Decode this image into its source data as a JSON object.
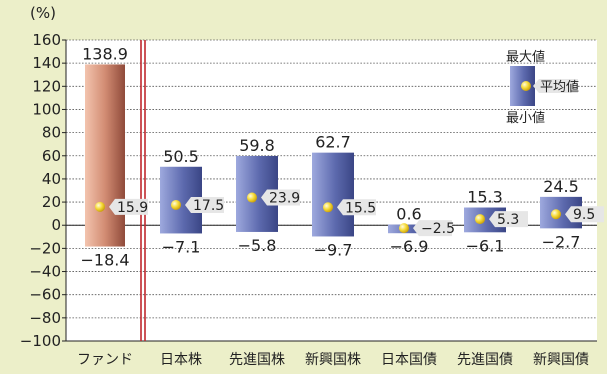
{
  "chart_data": {
    "type": "bar",
    "title": "",
    "ylabel": "(%)",
    "ylim": [
      -100,
      160
    ],
    "yticks": [
      160,
      140,
      120,
      100,
      80,
      60,
      40,
      20,
      0,
      -20,
      -40,
      -60,
      -80,
      -100
    ],
    "grid": true,
    "categories": [
      "ファンド",
      "日本株",
      "先進国株",
      "新興国株",
      "日本国債",
      "先進国債",
      "新興国債"
    ],
    "max": [
      138.9,
      50.5,
      59.8,
      62.7,
      0.6,
      15.3,
      24.5
    ],
    "min": [
      -18.4,
      -7.1,
      -5.8,
      -9.7,
      -6.9,
      -6.1,
      -2.7
    ],
    "avg": [
      15.9,
      17.5,
      23.9,
      15.5,
      -2.5,
      5.3,
      9.5
    ],
    "max_labels": [
      "138.9",
      "50.5",
      "59.8",
      "62.7",
      "0.6",
      "15.3",
      "24.5"
    ],
    "min_labels": [
      "−18.4",
      "−7.1",
      "−5.8",
      "−9.7",
      "−6.9",
      "−6.1",
      "−2.7"
    ],
    "avg_labels": [
      "15.9",
      "17.5",
      "23.9",
      "15.5",
      "−2.5",
      "5.3",
      "9.5"
    ],
    "legend": {
      "max": "最大値",
      "avg": "平均値",
      "min": "最小値",
      "placement": "top-right"
    },
    "colors": {
      "background": "#ecefc9",
      "fund_bar": "#b5705c",
      "asset_bar": "#5d6aae",
      "avg_marker": "#f3d320",
      "separator": "#c0282d"
    }
  }
}
